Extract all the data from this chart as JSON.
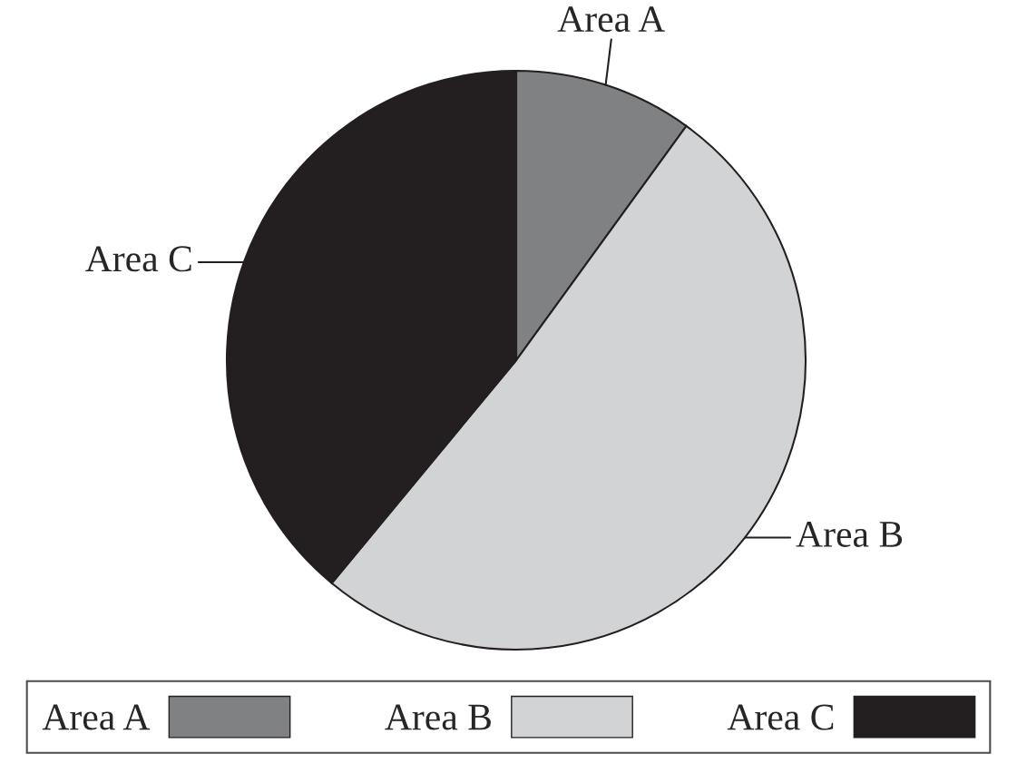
{
  "chart_data": {
    "type": "pie",
    "categories": [
      "Area A",
      "Area B",
      "Area C"
    ],
    "values": [
      10,
      51,
      39
    ],
    "colors": [
      "#7f8183",
      "#d1d3d4",
      "#231f20"
    ],
    "legend": "bottom"
  }
}
